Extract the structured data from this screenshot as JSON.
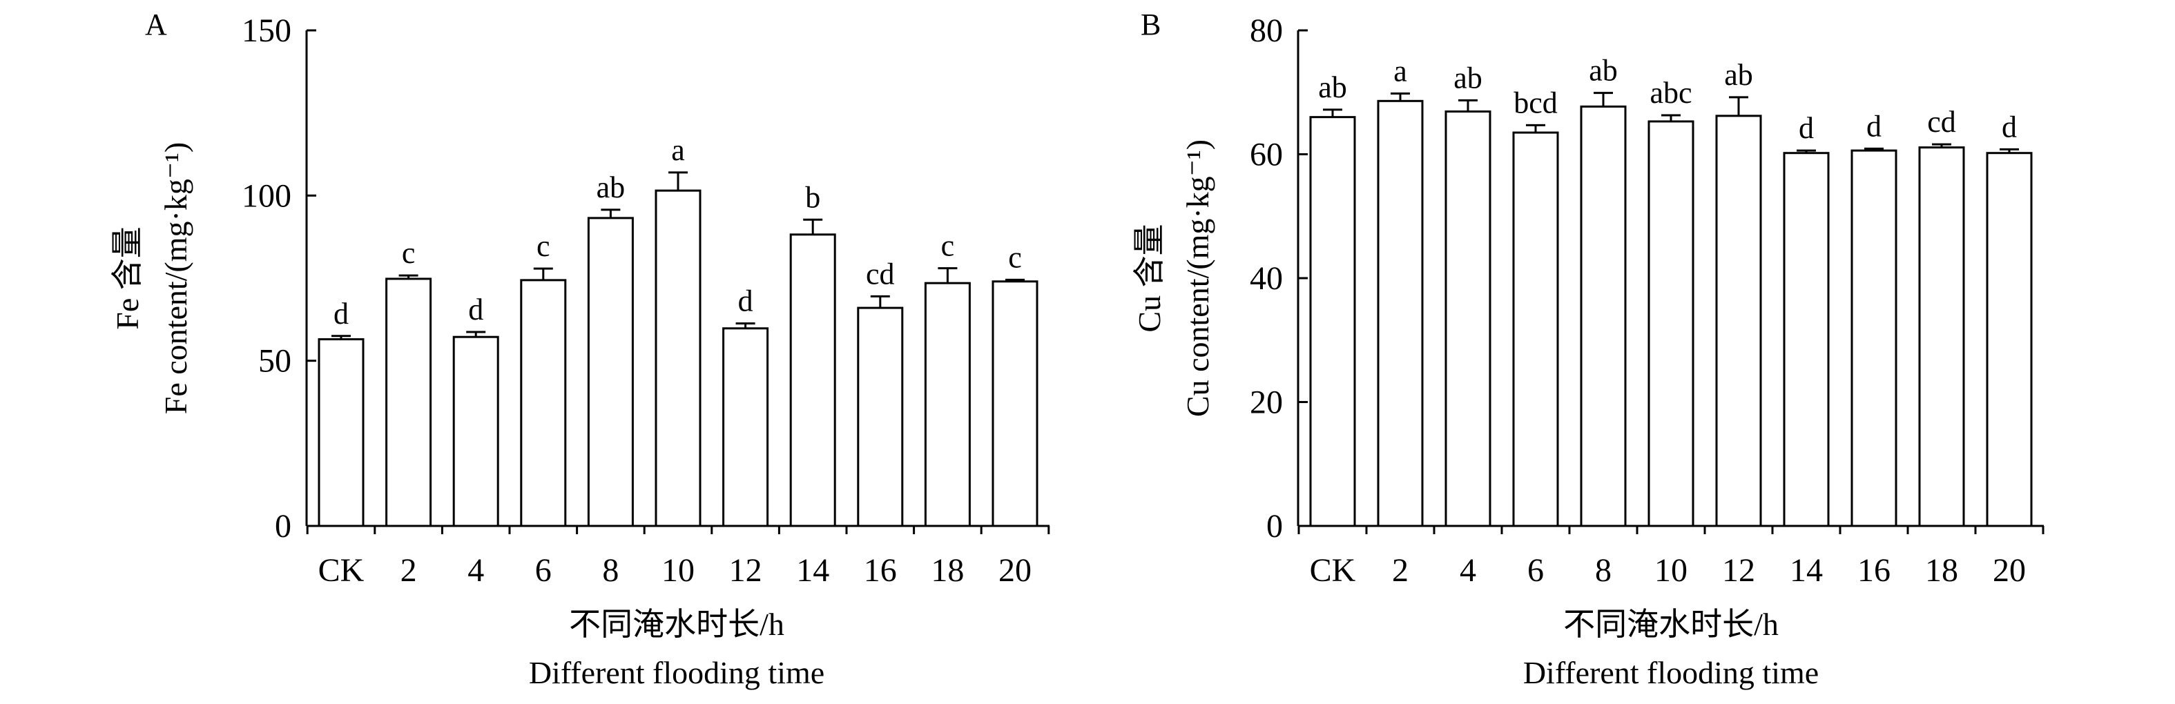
{
  "chart_data": [
    {
      "type": "bar",
      "panel_label": "A",
      "ylabel_cn": "Fe 含量",
      "ylabel": "Fe content/(mg·kg⁻¹)",
      "xlabel_cn": "不同淹水时长/h",
      "xlabel": "Different flooding time",
      "categories": [
        "CK",
        "2",
        "4",
        "6",
        "8",
        "10",
        "12",
        "14",
        "16",
        "18",
        "20"
      ],
      "values": [
        56.5,
        74.8,
        57.2,
        74.4,
        93.2,
        101.5,
        59.8,
        88.2,
        66,
        73.5,
        74
      ],
      "errors": [
        1,
        1,
        1.5,
        3.5,
        2.5,
        5.5,
        1.5,
        4.5,
        3.5,
        4.5,
        0.5
      ],
      "annotations": [
        "d",
        "c",
        "d",
        "c",
        "ab",
        "a",
        "d",
        "b",
        "cd",
        "c",
        "c"
      ],
      "color": "#ffffff",
      "edgecolor": "#000000",
      "ylim": [
        0,
        150
      ],
      "yticks": [
        0,
        50,
        100,
        150
      ]
    },
    {
      "type": "bar",
      "panel_label": "B",
      "ylabel_cn": "Cu 含量",
      "ylabel": "Cu content/(mg·kg⁻¹)",
      "xlabel_cn": "不同淹水时长/h",
      "xlabel": "Different flooding time",
      "categories": [
        "CK",
        "2",
        "4",
        "6",
        "8",
        "10",
        "12",
        "14",
        "16",
        "18",
        "20"
      ],
      "values": [
        66,
        68.6,
        66.9,
        63.5,
        67.7,
        65.3,
        66.2,
        60.2,
        60.6,
        61.1,
        60.2
      ],
      "errors": [
        1.2,
        1.2,
        1.8,
        1.2,
        2.2,
        1,
        3,
        0.4,
        0.3,
        0.5,
        0.6
      ],
      "annotations": [
        "ab",
        "a",
        "ab",
        "bcd",
        "ab",
        "abc",
        "ab",
        "d",
        "d",
        "cd",
        "d"
      ],
      "color": "#ffffff",
      "edgecolor": "#000000",
      "ylim": [
        0,
        80
      ],
      "yticks": [
        0,
        20,
        40,
        60,
        80
      ]
    }
  ]
}
